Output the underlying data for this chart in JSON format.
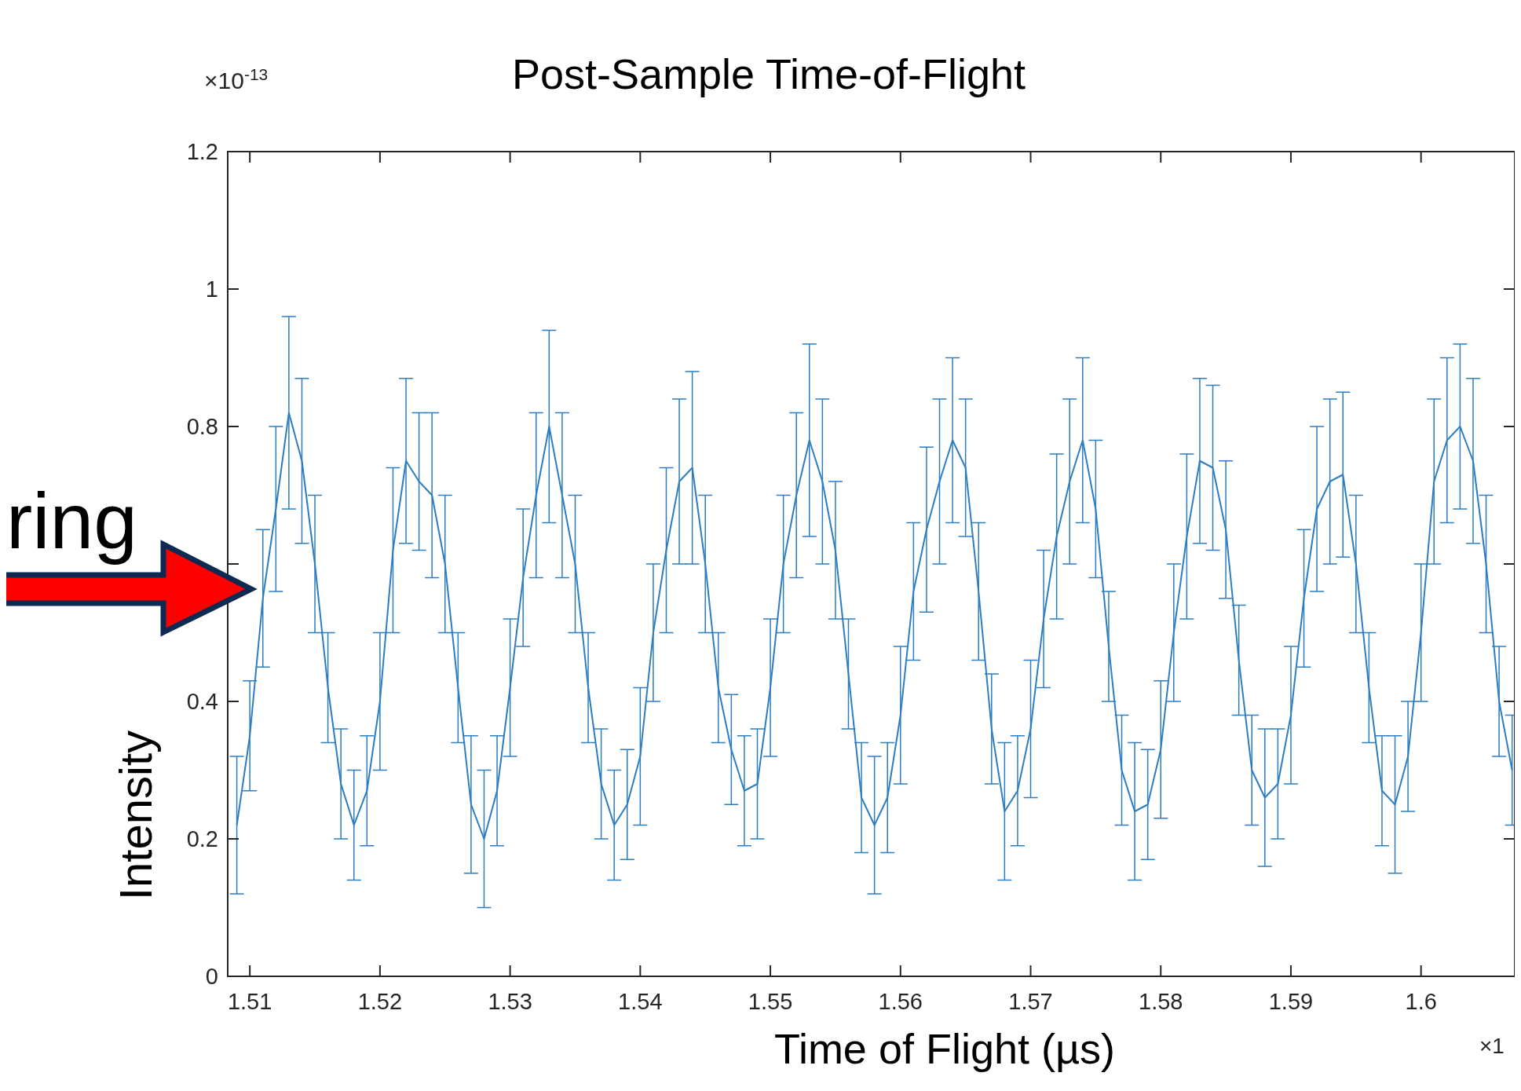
{
  "chart_data": {
    "type": "line",
    "title": "Post-Sample Time-of-Flight",
    "xlabel": "Time of Flight (µs)",
    "ylabel": "Intensity",
    "annotations": [
      "×10$^{-13}$",
      "ring",
      "×1"
    ],
    "xlim": [
      1.5083,
      1.6072
    ],
    "xticks": [
      1.51,
      1.52,
      1.53,
      1.54,
      1.55,
      1.56,
      1.57,
      1.58,
      1.59,
      1.6
    ],
    "ylim": [
      0,
      1.2
    ],
    "yticks": [
      0,
      0.2,
      0.4,
      {
        "value": 0.6,
        "label": null
      },
      0.8,
      1,
      1.2
    ],
    "grid": false,
    "marker": "none",
    "line_style": "solid",
    "series": [
      {
        "color": "#2d7dc2",
        "x": [
          1.509,
          1.51,
          1.511,
          1.512,
          1.513,
          1.514,
          1.515,
          1.516,
          1.517,
          1.518,
          1.519,
          1.52,
          1.521,
          1.522,
          1.523,
          1.524,
          1.525,
          1.526,
          1.527,
          1.528,
          1.529,
          1.53,
          1.531,
          1.532,
          1.533,
          1.534,
          1.535,
          1.536,
          1.537,
          1.538,
          1.539,
          1.54,
          1.541,
          1.542,
          1.543,
          1.544,
          1.545,
          1.546,
          1.547,
          1.548,
          1.549,
          1.55,
          1.551,
          1.552,
          1.553,
          1.554,
          1.555,
          1.556,
          1.557,
          1.558,
          1.559,
          1.56,
          1.561,
          1.562,
          1.563,
          1.564,
          1.565,
          1.566,
          1.567,
          1.568,
          1.569,
          1.57,
          1.571,
          1.572,
          1.573,
          1.574,
          1.575,
          1.576,
          1.577,
          1.578,
          1.579,
          1.58,
          1.581,
          1.582,
          1.583,
          1.584,
          1.585,
          1.586,
          1.587,
          1.588,
          1.589,
          1.59,
          1.591,
          1.592,
          1.593,
          1.594,
          1.595,
          1.596,
          1.597,
          1.598,
          1.599,
          1.6,
          1.601,
          1.602,
          1.603,
          1.604,
          1.605,
          1.606,
          1.607
        ],
        "values": [
          0.22,
          0.35,
          0.55,
          0.68,
          0.82,
          0.75,
          0.6,
          0.42,
          0.28,
          0.22,
          0.27,
          0.4,
          0.62,
          0.75,
          0.72,
          0.7,
          0.6,
          0.42,
          0.25,
          0.2,
          0.27,
          0.42,
          0.58,
          0.7,
          0.8,
          0.7,
          0.6,
          0.42,
          0.28,
          0.22,
          0.25,
          0.32,
          0.5,
          0.62,
          0.72,
          0.74,
          0.6,
          0.42,
          0.33,
          0.27,
          0.28,
          0.42,
          0.6,
          0.7,
          0.78,
          0.72,
          0.62,
          0.44,
          0.26,
          0.22,
          0.26,
          0.38,
          0.56,
          0.65,
          0.72,
          0.78,
          0.74,
          0.56,
          0.36,
          0.24,
          0.27,
          0.36,
          0.52,
          0.64,
          0.72,
          0.78,
          0.68,
          0.48,
          0.3,
          0.24,
          0.25,
          0.33,
          0.5,
          0.64,
          0.75,
          0.74,
          0.65,
          0.46,
          0.3,
          0.26,
          0.28,
          0.38,
          0.55,
          0.68,
          0.72,
          0.73,
          0.6,
          0.42,
          0.27,
          0.25,
          0.32,
          0.5,
          0.72,
          0.78,
          0.8,
          0.75,
          0.6,
          0.4,
          0.3
        ],
        "errors": [
          0.1,
          0.08,
          0.1,
          0.12,
          0.14,
          0.12,
          0.1,
          0.08,
          0.08,
          0.08,
          0.08,
          0.1,
          0.12,
          0.12,
          0.1,
          0.12,
          0.1,
          0.08,
          0.1,
          0.1,
          0.08,
          0.1,
          0.1,
          0.12,
          0.14,
          0.12,
          0.1,
          0.08,
          0.08,
          0.08,
          0.08,
          0.1,
          0.1,
          0.12,
          0.12,
          0.14,
          0.1,
          0.08,
          0.08,
          0.08,
          0.08,
          0.1,
          0.1,
          0.12,
          0.14,
          0.12,
          0.1,
          0.08,
          0.08,
          0.1,
          0.08,
          0.1,
          0.1,
          0.12,
          0.12,
          0.12,
          0.1,
          0.1,
          0.08,
          0.1,
          0.08,
          0.1,
          0.1,
          0.12,
          0.12,
          0.12,
          0.1,
          0.08,
          0.08,
          0.1,
          0.08,
          0.1,
          0.1,
          0.12,
          0.12,
          0.12,
          0.1,
          0.08,
          0.08,
          0.1,
          0.08,
          0.1,
          0.1,
          0.12,
          0.12,
          0.12,
          0.1,
          0.08,
          0.08,
          0.1,
          0.08,
          0.1,
          0.12,
          0.12,
          0.12,
          0.12,
          0.1,
          0.08,
          0.08
        ]
      }
    ]
  }
}
